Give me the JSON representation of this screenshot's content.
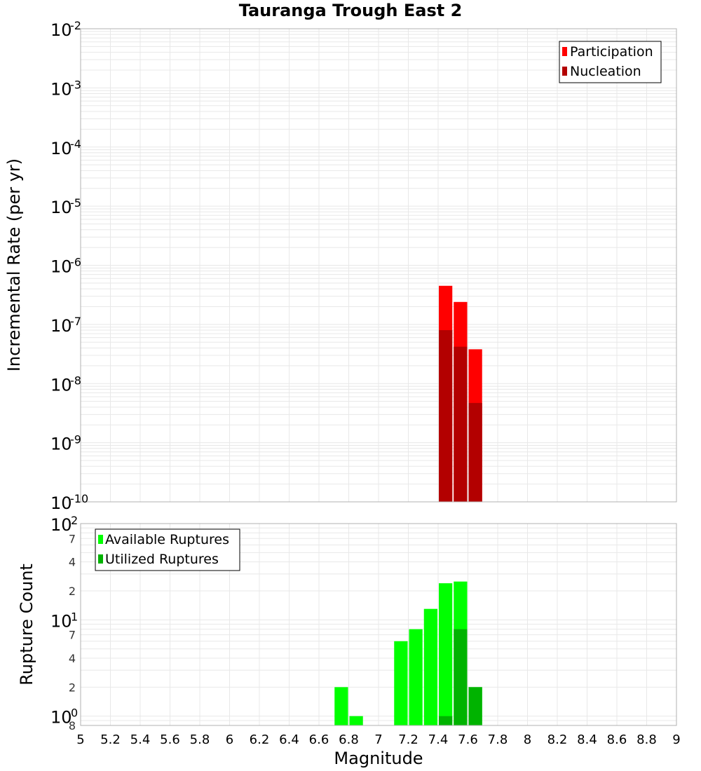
{
  "colors": {
    "participation": "#ff0000",
    "nucleation": "#b30000",
    "available": "#00ff00",
    "utilized": "#00b300",
    "grid": "#e8e8e8",
    "frame": "#b0b0b0"
  },
  "chart_data": [
    {
      "type": "bar",
      "title": "Tauranga Trough East 2",
      "ylabel": "Incremental Rate (per yr)",
      "xlabel": "",
      "y_scale": "log",
      "ylim": [
        1e-10,
        0.01
      ],
      "xlim": [
        5,
        9
      ],
      "bin_width": 0.1,
      "y_tick_mantissa": "10",
      "y_tick_exponents": [
        "-2",
        "-3",
        "-4",
        "-5",
        "-6",
        "-7",
        "-8",
        "-9",
        "-10"
      ],
      "legend_position": "top-right",
      "grid": true,
      "x": [
        7.45,
        7.55,
        7.65
      ],
      "series": [
        {
          "name": "Participation",
          "values": [
            4.5e-07,
            2.4e-07,
            3.8e-08
          ]
        },
        {
          "name": "Nucleation",
          "values": [
            8e-08,
            4.2e-08,
            4.7e-09
          ]
        }
      ]
    },
    {
      "type": "bar",
      "title": "",
      "ylabel": "Rupture Count",
      "xlabel": "Magnitude",
      "y_scale": "log",
      "ylim": [
        0.8,
        100
      ],
      "xlim": [
        5,
        9
      ],
      "bin_width": 0.1,
      "x_ticks": [
        "5",
        "5.2",
        "5.4",
        "5.6",
        "5.8",
        "6",
        "6.2",
        "6.4",
        "6.6",
        "6.8",
        "7",
        "7.2",
        "7.4",
        "7.6",
        "7.8",
        "8",
        "8.2",
        "8.4",
        "8.6",
        "8.8",
        "9"
      ],
      "y_major_ticks": [
        {
          "mantissa": "10",
          "exp": "2"
        },
        {
          "mantissa": "10",
          "exp": "1"
        },
        {
          "mantissa": "10",
          "exp": "0"
        }
      ],
      "y_minor_ticks": [
        "7",
        "4",
        "2",
        "7",
        "4",
        "2",
        "8"
      ],
      "legend_position": "top-left",
      "grid": true,
      "x": [
        6.75,
        6.85,
        7.15,
        7.25,
        7.35,
        7.45,
        7.55,
        7.65
      ],
      "series": [
        {
          "name": "Available Ruptures",
          "values": [
            2,
            1,
            6,
            8,
            13,
            24,
            25,
            2
          ]
        },
        {
          "name": "Utilized Ruptures",
          "values": [
            0,
            0,
            0,
            0,
            0,
            1,
            8,
            2
          ]
        }
      ]
    }
  ]
}
